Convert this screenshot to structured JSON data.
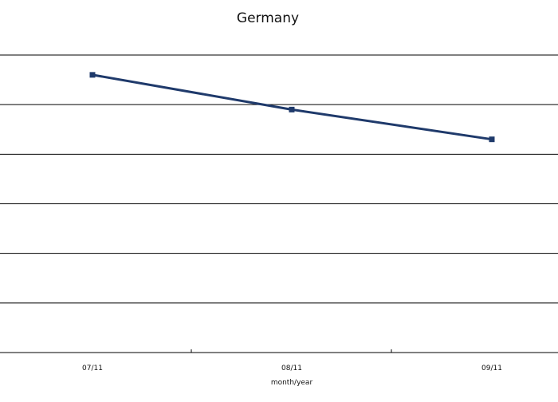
{
  "chart_data": {
    "type": "line",
    "title": "Germany",
    "xlabel": "month/year",
    "ylabel": "",
    "categories": [
      "07/11",
      "08/11",
      "09/11"
    ],
    "series": [
      {
        "name": "Germany",
        "values": [
          5.6,
          4.9,
          4.3
        ],
        "color": "#1f3a6b"
      }
    ],
    "ylim": [
      0,
      6
    ],
    "yticks": [
      0,
      1,
      2,
      3,
      4,
      5,
      6
    ],
    "show_y_tick_labels": false,
    "grid": true,
    "gridline_color": "#000000",
    "marker": "square"
  }
}
